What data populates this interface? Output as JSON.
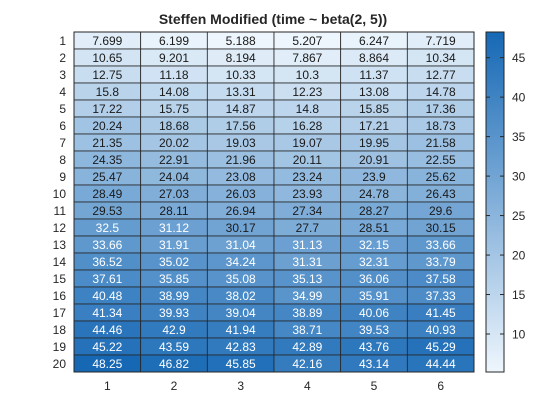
{
  "chart_data": {
    "type": "heatmap",
    "title": "Steffen Modified (time ~ beta(2, 5))",
    "xlabel": "",
    "ylabel": "",
    "x_categories": [
      "1",
      "2",
      "3",
      "4",
      "5",
      "6"
    ],
    "y_categories": [
      "1",
      "2",
      "3",
      "4",
      "5",
      "6",
      "7",
      "8",
      "9",
      "10",
      "11",
      "12",
      "13",
      "14",
      "15",
      "16",
      "17",
      "18",
      "19",
      "20"
    ],
    "values": [
      [
        "7.699",
        "6.199",
        "5.188",
        "5.207",
        "6.247",
        "7.719"
      ],
      [
        "10.65",
        "9.201",
        "8.194",
        "7.867",
        "8.864",
        "10.34"
      ],
      [
        "12.75",
        "11.18",
        "10.33",
        "10.3",
        "11.37",
        "12.77"
      ],
      [
        "15.8",
        "14.08",
        "13.31",
        "12.23",
        "13.08",
        "14.78"
      ],
      [
        "17.22",
        "15.75",
        "14.87",
        "14.8",
        "15.85",
        "17.36"
      ],
      [
        "20.24",
        "18.68",
        "17.56",
        "16.28",
        "17.21",
        "18.73"
      ],
      [
        "21.35",
        "20.02",
        "19.03",
        "19.07",
        "19.95",
        "21.58"
      ],
      [
        "24.35",
        "22.91",
        "21.96",
        "20.11",
        "20.91",
        "22.55"
      ],
      [
        "25.47",
        "24.04",
        "23.08",
        "23.24",
        "23.9",
        "25.62"
      ],
      [
        "28.49",
        "27.03",
        "26.03",
        "23.93",
        "24.78",
        "26.43"
      ],
      [
        "29.53",
        "28.11",
        "26.94",
        "27.34",
        "28.27",
        "29.6"
      ],
      [
        "32.5",
        "31.12",
        "30.17",
        "27.7",
        "28.51",
        "30.15"
      ],
      [
        "33.66",
        "31.91",
        "31.04",
        "31.13",
        "32.15",
        "33.66"
      ],
      [
        "36.52",
        "35.02",
        "34.24",
        "31.31",
        "32.31",
        "33.79"
      ],
      [
        "37.61",
        "35.85",
        "35.08",
        "35.13",
        "36.06",
        "37.58"
      ],
      [
        "40.48",
        "38.99",
        "38.02",
        "34.99",
        "35.91",
        "37.33"
      ],
      [
        "41.34",
        "39.93",
        "39.04",
        "38.89",
        "40.06",
        "41.45"
      ],
      [
        "44.46",
        "42.9",
        "41.94",
        "38.71",
        "39.53",
        "40.93"
      ],
      [
        "45.22",
        "43.59",
        "42.83",
        "42.89",
        "43.76",
        "45.29"
      ],
      [
        "48.25",
        "46.82",
        "45.85",
        "42.16",
        "43.14",
        "44.44"
      ]
    ],
    "colorbar": {
      "ticks": [
        10,
        15,
        20,
        25,
        30,
        35,
        40,
        45
      ],
      "range": [
        5.188,
        48.25
      ]
    },
    "colormap": {
      "low": "#eef6fd",
      "high": "#1668b5"
    },
    "text_colors": {
      "dark": "#1a1a1a",
      "light": "#ffffff"
    },
    "grid": true
  }
}
